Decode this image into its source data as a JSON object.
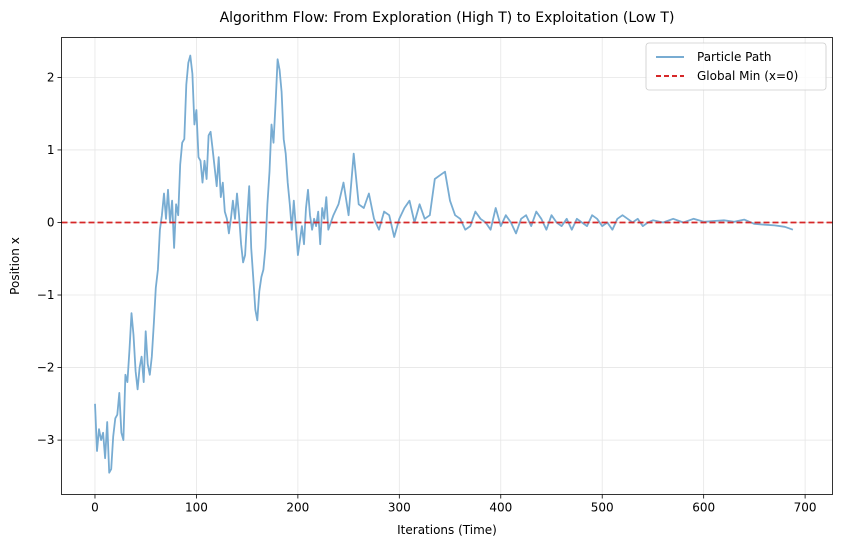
{
  "chart_data": {
    "type": "line",
    "title": "Algorithm Flow: From Exploration (High T) to Exploitation (Low T)",
    "xlabel": "Iterations (Time)",
    "ylabel": "Position x",
    "xlim": [
      -33,
      727
    ],
    "ylim": [
      -3.75,
      2.55
    ],
    "xticks": [
      0,
      100,
      200,
      300,
      400,
      500,
      600,
      700
    ],
    "yticks": [
      -3,
      -2,
      -1,
      0,
      1,
      2
    ],
    "x_tick_labels": [
      "0",
      "100",
      "200",
      "300",
      "400",
      "500",
      "600",
      "700"
    ],
    "y_tick_labels": [
      "−3",
      "−2",
      "−1",
      "0",
      "1",
      "2"
    ],
    "grid": true,
    "legend_position": "top-right",
    "series": [
      {
        "name": "Particle Path",
        "color": "#78acd2",
        "style": "solid",
        "x": [
          0,
          2,
          4,
          6,
          8,
          10,
          12,
          14,
          16,
          18,
          20,
          22,
          24,
          26,
          28,
          30,
          32,
          34,
          36,
          38,
          40,
          42,
          44,
          46,
          48,
          50,
          52,
          54,
          56,
          58,
          60,
          62,
          64,
          66,
          68,
          70,
          72,
          74,
          76,
          78,
          80,
          82,
          84,
          86,
          88,
          90,
          92,
          94,
          96,
          98,
          100,
          102,
          104,
          106,
          108,
          110,
          112,
          114,
          116,
          118,
          120,
          122,
          124,
          126,
          128,
          130,
          132,
          134,
          136,
          138,
          140,
          142,
          144,
          146,
          148,
          150,
          152,
          154,
          156,
          158,
          160,
          162,
          164,
          166,
          168,
          170,
          172,
          174,
          176,
          178,
          180,
          182,
          184,
          186,
          188,
          190,
          192,
          194,
          196,
          198,
          200,
          202,
          204,
          206,
          208,
          210,
          212,
          214,
          216,
          218,
          220,
          222,
          224,
          226,
          228,
          230,
          235,
          240,
          245,
          250,
          255,
          260,
          265,
          270,
          275,
          280,
          285,
          290,
          295,
          300,
          305,
          310,
          315,
          320,
          325,
          330,
          335,
          340,
          345,
          350,
          355,
          360,
          365,
          370,
          375,
          380,
          385,
          390,
          395,
          400,
          405,
          410,
          415,
          420,
          425,
          430,
          435,
          440,
          445,
          450,
          455,
          460,
          465,
          470,
          475,
          480,
          485,
          490,
          495,
          500,
          505,
          510,
          515,
          520,
          525,
          530,
          535,
          540,
          545,
          550,
          560,
          570,
          580,
          590,
          600,
          610,
          620,
          630,
          640,
          650,
          660,
          670,
          680,
          688
        ],
        "y": [
          -2.5,
          -3.15,
          -2.85,
          -3.0,
          -2.9,
          -3.25,
          -2.75,
          -3.45,
          -3.4,
          -2.95,
          -2.7,
          -2.65,
          -2.35,
          -2.9,
          -3.0,
          -2.1,
          -2.2,
          -1.75,
          -1.25,
          -1.55,
          -2.05,
          -2.3,
          -2.0,
          -1.85,
          -2.2,
          -1.5,
          -1.95,
          -2.1,
          -1.85,
          -1.4,
          -0.9,
          -0.65,
          -0.1,
          0.1,
          0.4,
          0.05,
          0.45,
          0.0,
          0.3,
          -0.35,
          0.25,
          0.1,
          0.8,
          1.1,
          1.15,
          1.9,
          2.2,
          2.3,
          2.05,
          1.35,
          1.55,
          0.9,
          0.85,
          0.55,
          0.85,
          0.6,
          1.2,
          1.25,
          1.0,
          0.75,
          0.5,
          0.9,
          0.35,
          0.55,
          0.15,
          0.05,
          -0.15,
          0.05,
          0.3,
          0.05,
          0.4,
          0.1,
          -0.3,
          -0.55,
          -0.45,
          0.05,
          0.5,
          -0.35,
          -0.75,
          -1.2,
          -1.35,
          -0.95,
          -0.75,
          -0.65,
          -0.35,
          0.25,
          0.7,
          1.35,
          1.1,
          1.65,
          2.25,
          2.1,
          1.8,
          1.15,
          0.95,
          0.55,
          0.25,
          -0.1,
          0.3,
          -0.05,
          -0.45,
          -0.25,
          -0.05,
          -0.3,
          0.2,
          0.45,
          0.1,
          -0.1,
          0.05,
          -0.05,
          0.15,
          -0.3,
          0.2,
          0.05,
          0.35,
          -0.1,
          0.1,
          0.25,
          0.55,
          0.1,
          0.95,
          0.25,
          0.2,
          0.4,
          0.05,
          -0.1,
          0.15,
          0.1,
          -0.2,
          0.05,
          0.2,
          0.3,
          0.0,
          0.25,
          0.05,
          0.1,
          0.6,
          0.65,
          0.7,
          0.3,
          0.1,
          0.05,
          -0.1,
          -0.05,
          0.15,
          0.05,
          0.0,
          -0.1,
          0.2,
          -0.05,
          0.1,
          0.0,
          -0.15,
          0.05,
          0.1,
          -0.05,
          0.15,
          0.05,
          -0.1,
          0.1,
          0.0,
          -0.05,
          0.05,
          -0.1,
          0.05,
          0.0,
          -0.05,
          0.1,
          0.05,
          -0.05,
          0.0,
          -0.1,
          0.05,
          0.1,
          0.05,
          0.0,
          0.05,
          -0.05,
          0.0,
          0.03,
          0.0,
          0.05,
          0.0,
          0.05,
          0.01,
          0.02,
          0.03,
          0.01,
          0.04,
          -0.02,
          -0.03,
          -0.04,
          -0.06,
          -0.1
        ]
      },
      {
        "name": "Global Min (x=0)",
        "color": "#d62728",
        "style": "dashed",
        "value": 0
      }
    ]
  }
}
